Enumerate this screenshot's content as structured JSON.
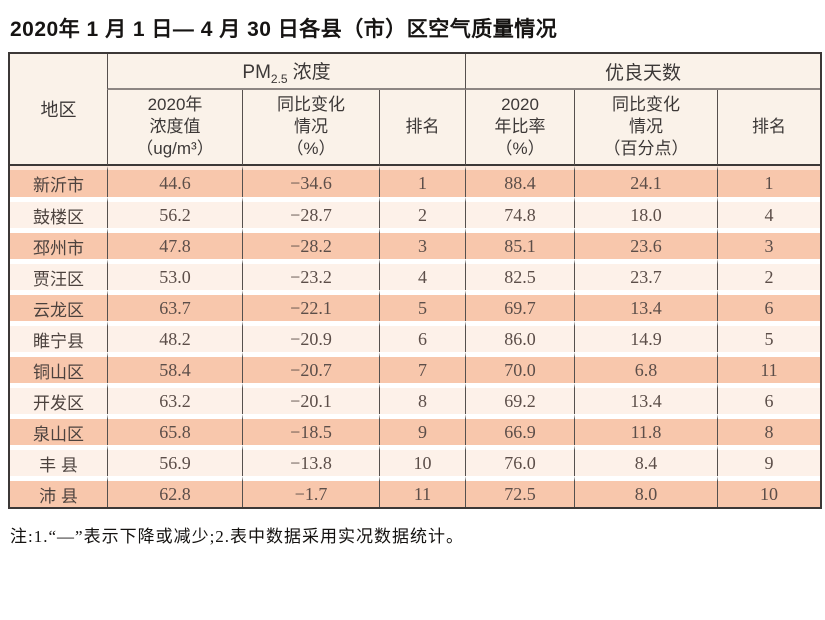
{
  "page_title": "2020年 1 月 1 日— 4 月 30 日各县（市）区空气质量情况",
  "note": "注:1.“—”表示下降或减少;2.表中数据采用实况数据统计。",
  "colors": {
    "row_dark": "#f8c7ac",
    "row_light": "#fdf1e9",
    "header_bg": "#faf2e9",
    "border_dark": "#3c3837"
  },
  "table": {
    "header": {
      "region": "地区",
      "pm_group_prefix": "PM",
      "pm_group_sub": "2.5",
      "pm_group_suffix": "浓度",
      "good_days_group": "优良天数",
      "pm_value": "2020年\n浓度值\n（ug/m³）",
      "pm_change": "同比变化\n情况\n（%）",
      "pm_rank": "排名",
      "ratio": "2020\n年比率\n（%）",
      "ratio_change": "同比变化\n情况\n（百分点）",
      "rank": "排名"
    },
    "rows": [
      {
        "region": "新沂市",
        "pm_value": "44.6",
        "pm_change": "−34.6",
        "pm_rank": "1",
        "ratio": "88.4",
        "ratio_change": "24.1",
        "rank": "1"
      },
      {
        "region": "鼓楼区",
        "pm_value": "56.2",
        "pm_change": "−28.7",
        "pm_rank": "2",
        "ratio": "74.8",
        "ratio_change": "18.0",
        "rank": "4"
      },
      {
        "region": "邳州市",
        "pm_value": "47.8",
        "pm_change": "−28.2",
        "pm_rank": "3",
        "ratio": "85.1",
        "ratio_change": "23.6",
        "rank": "3"
      },
      {
        "region": "贾汪区",
        "pm_value": "53.0",
        "pm_change": "−23.2",
        "pm_rank": "4",
        "ratio": "82.5",
        "ratio_change": "23.7",
        "rank": "2"
      },
      {
        "region": "云龙区",
        "pm_value": "63.7",
        "pm_change": "−22.1",
        "pm_rank": "5",
        "ratio": "69.7",
        "ratio_change": "13.4",
        "rank": "6"
      },
      {
        "region": "睢宁县",
        "pm_value": "48.2",
        "pm_change": "−20.9",
        "pm_rank": "6",
        "ratio": "86.0",
        "ratio_change": "14.9",
        "rank": "5"
      },
      {
        "region": "铜山区",
        "pm_value": "58.4",
        "pm_change": "−20.7",
        "pm_rank": "7",
        "ratio": "70.0",
        "ratio_change": "6.8",
        "rank": "11"
      },
      {
        "region": "开发区",
        "pm_value": "63.2",
        "pm_change": "−20.1",
        "pm_rank": "8",
        "ratio": "69.2",
        "ratio_change": "13.4",
        "rank": "6"
      },
      {
        "region": "泉山区",
        "pm_value": "65.8",
        "pm_change": "−18.5",
        "pm_rank": "9",
        "ratio": "66.9",
        "ratio_change": "11.8",
        "rank": "8"
      },
      {
        "region": "丰 县",
        "pm_value": "56.9",
        "pm_change": "−13.8",
        "pm_rank": "10",
        "ratio": "76.0",
        "ratio_change": "8.4",
        "rank": "9"
      },
      {
        "region": "沛 县",
        "pm_value": "62.8",
        "pm_change": "−1.7",
        "pm_rank": "11",
        "ratio": "72.5",
        "ratio_change": "8.0",
        "rank": "10"
      }
    ]
  }
}
